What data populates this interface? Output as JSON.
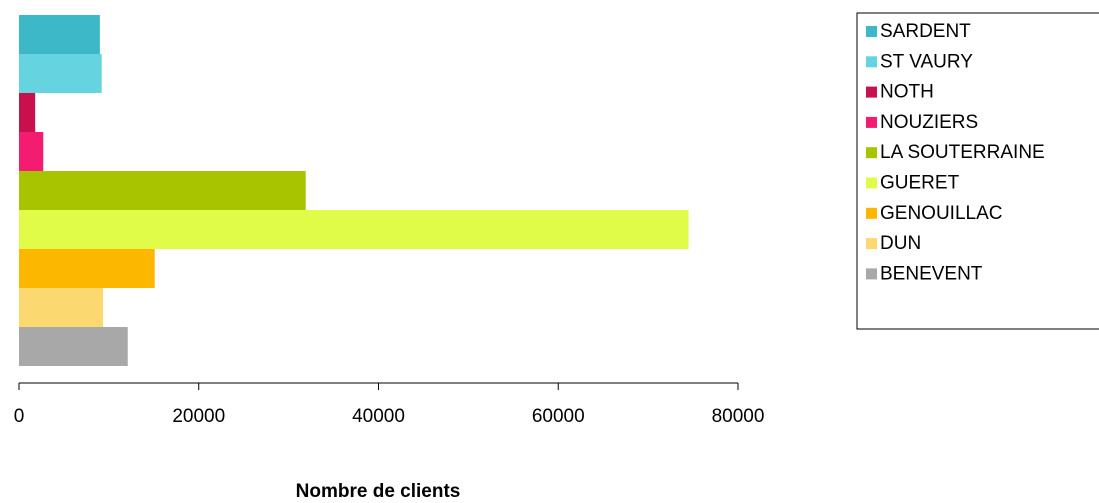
{
  "chart_data": {
    "type": "barh",
    "x_label": "Nombre de clients",
    "categories": [
      "SARDENT",
      "ST VAURY",
      "NOTH",
      "NOUZIERS",
      "LA SOUTERRAINE",
      "GUERET",
      "GENOUILLAC",
      "DUN",
      "BENEVENT"
    ],
    "values": [
      9000,
      9200,
      1800,
      2700,
      31900,
      74500,
      15100,
      9350,
      12100
    ],
    "colors": [
      "#3cb8c8",
      "#66d4e0",
      "#c8104c",
      "#f41c70",
      "#a8c400",
      "#e0fc48",
      "#fcb800",
      "#fcd870",
      "#a8a8a8"
    ],
    "xlim": [
      0,
      80000
    ],
    "xticks": [
      0,
      20000,
      40000,
      60000,
      80000
    ],
    "legend": "right"
  }
}
